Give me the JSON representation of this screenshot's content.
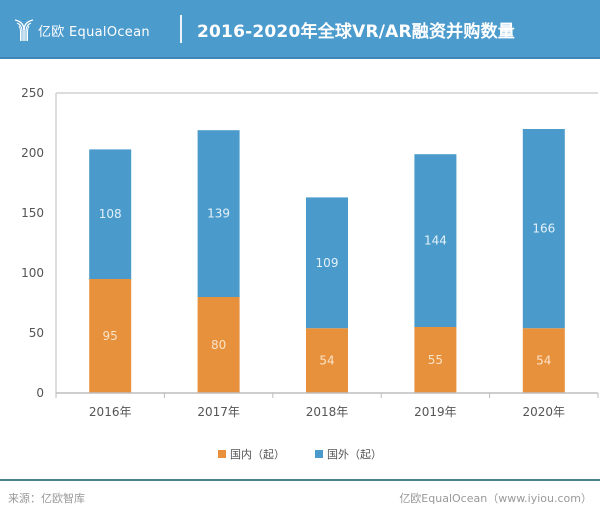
{
  "header": {
    "logo_text": "亿欧 EqualOcean",
    "title": "2016-2020年全球VR/AR融资并购数量"
  },
  "colors": {
    "header_bg": "#4c9bcd",
    "domestic": "#e8913c",
    "foreign": "#4a9bcb"
  },
  "chart_data": {
    "type": "bar",
    "stacked": true,
    "title": "2016-2020年全球VR/AR融资并购数量",
    "xlabel": "",
    "ylabel": "",
    "categories": [
      "2016年",
      "2017年",
      "2018年",
      "2019年",
      "2020年"
    ],
    "series": [
      {
        "name": "国内（起）",
        "color": "#e8913c",
        "values": [
          95,
          80,
          54,
          55,
          54
        ]
      },
      {
        "name": "国外（起）",
        "color": "#4a9bcb",
        "values": [
          108,
          139,
          109,
          144,
          166
        ]
      }
    ],
    "ylim": [
      0,
      250
    ],
    "yticks": [
      0,
      50,
      100,
      150,
      200,
      250
    ],
    "grid": false,
    "legend": "bottom-center",
    "data_labels": true
  },
  "footer": {
    "source": "来源：亿欧智库",
    "credit": "亿欧EqualOcean（www.iyiou.com）"
  }
}
